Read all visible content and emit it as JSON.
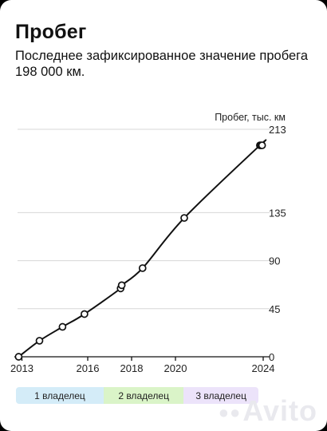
{
  "header": {
    "title": "Пробег",
    "subtitle": "Последнее зафиксированное значение пробега 198 000 км."
  },
  "chart_data": {
    "type": "line",
    "ylabel": "Пробег, тыс. км",
    "xlabel": "",
    "ylim": [
      0,
      213
    ],
    "xlim": [
      2012.8,
      2024
    ],
    "yticks": [
      0,
      45,
      90,
      135,
      213
    ],
    "xticks": [
      2013,
      2016,
      2018,
      2020,
      2024
    ],
    "grid": true,
    "series": [
      {
        "values": [
          {
            "x": 2012.85,
            "y": 0
          },
          {
            "x": 2013.8,
            "y": 15
          },
          {
            "x": 2014.85,
            "y": 28
          },
          {
            "x": 2015.85,
            "y": 40
          },
          {
            "x": 2017.5,
            "y": 64
          },
          {
            "x": 2017.55,
            "y": 67
          },
          {
            "x": 2018.5,
            "y": 83
          },
          {
            "x": 2020.4,
            "y": 130
          },
          {
            "x": 2023.85,
            "y": 198
          },
          {
            "x": 2023.9,
            "y": 198
          },
          {
            "x": 2023.95,
            "y": 198
          }
        ]
      }
    ],
    "owners": [
      {
        "label": "1 владелец",
        "color": "#d4ecf8",
        "from": 2012.8,
        "to": 2016.85
      },
      {
        "label": "2 владелец",
        "color": "#daf4c8",
        "from": 2016.85,
        "to": 2020.55
      },
      {
        "label": "3 владелец",
        "color": "#ece3fa",
        "from": 2020.55,
        "to": 2024
      }
    ],
    "colors": {
      "line": "#111111",
      "grid": "#d7d7d7",
      "axis": "#111111",
      "point_fill": "#ffffff"
    }
  },
  "watermark": {
    "text": "Avito",
    "dots": "●●"
  }
}
